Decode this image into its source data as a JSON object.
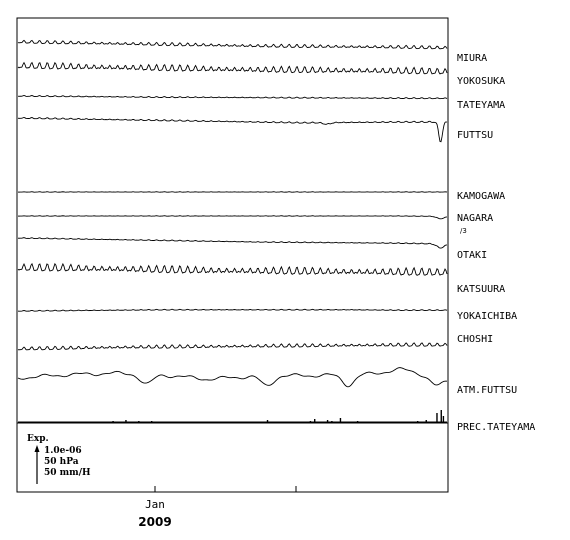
{
  "chart_data": {
    "type": "line",
    "title": "",
    "xlabel": "",
    "ylabel": "",
    "x_tick_labels": [
      "Jan"
    ],
    "x_year_label": "2009",
    "series": [
      {
        "name": "MIURA",
        "sub": "",
        "style": "wavy",
        "amp": 1.5,
        "trend": [
          0,
          0.2,
          0.4,
          0.6,
          0.8,
          1.0,
          1.1,
          1.2,
          1.3,
          1.5
        ],
        "events": []
      },
      {
        "name": "YOKOSUKA",
        "sub": "",
        "style": "wavy",
        "amp": 3.0,
        "trend": [
          0,
          0.2,
          0.4,
          0.6,
          0.8,
          1.0,
          1.1,
          1.2,
          1.3,
          1.5
        ],
        "events": []
      },
      {
        "name": "TATEYAMA",
        "sub": "",
        "style": "wavy",
        "amp": 0.5,
        "trend": [
          0,
          0.1,
          0.2,
          0.3,
          0.35,
          0.4,
          0.45,
          0.5,
          0.55,
          0.6
        ],
        "events": []
      },
      {
        "name": "FUTTSU",
        "sub": "",
        "style": "wavy",
        "amp": 0.6,
        "trend": [
          0,
          0.2,
          0.4,
          0.6,
          0.8,
          1.0,
          1.2,
          1.1,
          1.0,
          1.0
        ],
        "events": [
          {
            "at": 0.72,
            "depth": 0.4
          },
          {
            "at": 0.985,
            "depth": 5.0
          }
        ]
      },
      {
        "name": "KAMOGAWA",
        "sub": "",
        "style": "wavy",
        "amp": 0.2,
        "trend": [
          0,
          0,
          0,
          0,
          0,
          0,
          0,
          0,
          0,
          0
        ],
        "events": []
      },
      {
        "name": "NAGARA",
        "sub": "/3",
        "style": "wavy",
        "amp": 0.2,
        "trend": [
          0,
          0,
          0,
          0,
          0,
          0,
          0,
          0,
          0,
          0.1
        ],
        "events": [
          {
            "at": 0.985,
            "depth": 0.6
          }
        ]
      },
      {
        "name": "OTAKI",
        "sub": "",
        "style": "wavy",
        "amp": 0.4,
        "trend": [
          0,
          0.2,
          0.4,
          0.6,
          0.8,
          1.0,
          1.1,
          1.2,
          1.3,
          1.5
        ],
        "events": [
          {
            "at": 0.985,
            "depth": 1.0
          }
        ]
      },
      {
        "name": "KATSUURA",
        "sub": "",
        "style": "wavy",
        "amp": 3.5,
        "trend": [
          0,
          0.1,
          0.3,
          0.5,
          0.7,
          0.8,
          0.9,
          1.0,
          1.1,
          1.2
        ],
        "events": []
      },
      {
        "name": "YOKAICHIBA",
        "sub": "",
        "style": "wavy",
        "amp": 0.4,
        "trend": [
          0,
          -0.1,
          -0.2,
          -0.3,
          -0.3,
          -0.3,
          -0.3,
          -0.3,
          -0.2,
          -0.2
        ],
        "events": []
      },
      {
        "name": "CHOSHI",
        "sub": "",
        "style": "wavy",
        "amp": 1.6,
        "trend": [
          0,
          -0.2,
          -0.4,
          -0.5,
          -0.6,
          -0.7,
          -0.8,
          -0.9,
          -1.0,
          -1.0
        ],
        "events": []
      },
      {
        "name": "ATM.FUTTSU",
        "sub": "",
        "style": "pressure",
        "amp": 2.0,
        "trend": [
          0,
          -0.8,
          -1.2,
          -0.8,
          0.3,
          -0.5,
          -0.6,
          -0.8,
          -1.2,
          0.4
        ],
        "events": []
      },
      {
        "name": "PREC.TATEYAMA",
        "sub": "",
        "style": "bars",
        "amp": 0,
        "trend": [],
        "events": []
      }
    ],
    "scale_legend": [
      "Exp.",
      "1.0e-06",
      "50 hPa",
      "50 mm/H"
    ],
    "grid": false,
    "legend": "right"
  }
}
